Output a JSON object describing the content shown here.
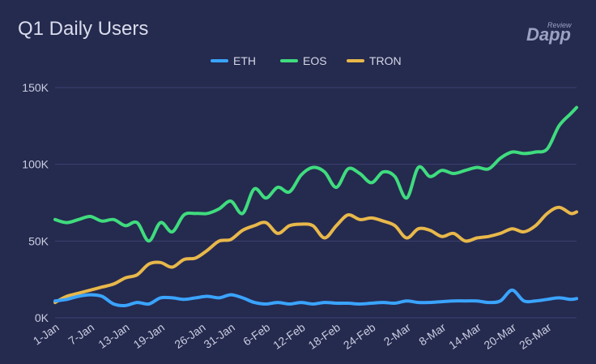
{
  "chart_data": {
    "type": "line",
    "title": "Q1 Daily Users",
    "xlabel": "",
    "ylabel": "",
    "ylim": [
      0,
      150000
    ],
    "y_ticks": [
      0,
      50000,
      100000,
      150000
    ],
    "y_tick_labels": [
      "0K",
      "50K",
      "100K",
      "150K"
    ],
    "x_range_days": [
      "1-Jan",
      "31-Mar"
    ],
    "x_tick_labels": [
      "1-Jan",
      "7-Jan",
      "13-Jan",
      "19-Jan",
      "26-Jan",
      "31-Jan",
      "6-Feb",
      "12-Feb",
      "18-Feb",
      "24-Feb",
      "2-Mar",
      "8-Mar",
      "14-Mar",
      "20-Mar",
      "26-Mar"
    ],
    "legend_position": "top-center",
    "grid": "horizontal",
    "x": [
      "1-Jan",
      "3-Jan",
      "5-Jan",
      "7-Jan",
      "9-Jan",
      "11-Jan",
      "13-Jan",
      "15-Jan",
      "17-Jan",
      "19-Jan",
      "21-Jan",
      "23-Jan",
      "25-Jan",
      "27-Jan",
      "29-Jan",
      "31-Jan",
      "2-Feb",
      "4-Feb",
      "6-Feb",
      "8-Feb",
      "10-Feb",
      "12-Feb",
      "14-Feb",
      "16-Feb",
      "18-Feb",
      "20-Feb",
      "22-Feb",
      "24-Feb",
      "26-Feb",
      "28-Feb",
      "2-Mar",
      "4-Mar",
      "6-Mar",
      "8-Mar",
      "10-Mar",
      "12-Mar",
      "14-Mar",
      "16-Mar",
      "18-Mar",
      "20-Mar",
      "22-Mar",
      "24-Mar",
      "26-Mar",
      "28-Mar",
      "30-Mar",
      "31-Mar"
    ],
    "series": [
      {
        "name": "ETH",
        "color": "#3aa4ff",
        "values": [
          11000,
          12000,
          14000,
          15000,
          14000,
          9000,
          8000,
          10000,
          9000,
          13000,
          13000,
          12000,
          13000,
          14000,
          13000,
          15000,
          13000,
          10000,
          9000,
          10000,
          9000,
          10000,
          9000,
          10000,
          9500,
          9500,
          9000,
          9500,
          10000,
          9500,
          11000,
          10000,
          10000,
          10500,
          11000,
          11000,
          11000,
          10000,
          11000,
          18000,
          11000,
          11000,
          12000,
          13000,
          12000,
          12500
        ]
      },
      {
        "name": "EOS",
        "color": "#3fdc7e",
        "values": [
          64000,
          62000,
          64000,
          66000,
          63000,
          64000,
          60000,
          62000,
          50000,
          62000,
          56000,
          67000,
          68000,
          68000,
          71000,
          76000,
          68000,
          84000,
          78000,
          85000,
          82000,
          93000,
          98000,
          95000,
          85000,
          97000,
          94000,
          88000,
          95000,
          92000,
          78000,
          98000,
          92000,
          96000,
          94000,
          96000,
          98000,
          97000,
          104000,
          108000,
          107000,
          108000,
          110000,
          125000,
          133000,
          137000
        ]
      },
      {
        "name": "TRON",
        "color": "#e8b84a",
        "values": [
          10000,
          14000,
          16000,
          18000,
          20000,
          22000,
          26000,
          28000,
          35000,
          36000,
          33000,
          38000,
          39000,
          44000,
          50000,
          51000,
          57000,
          60000,
          62000,
          55000,
          60000,
          61000,
          60000,
          52000,
          60000,
          67000,
          64000,
          65000,
          63000,
          60000,
          52000,
          58000,
          57000,
          53000,
          55000,
          50000,
          52000,
          53000,
          55000,
          58000,
          56000,
          60000,
          68000,
          72000,
          68000,
          69000
        ]
      }
    ]
  },
  "logo": {
    "small": "Review",
    "big": "Dapp"
  }
}
